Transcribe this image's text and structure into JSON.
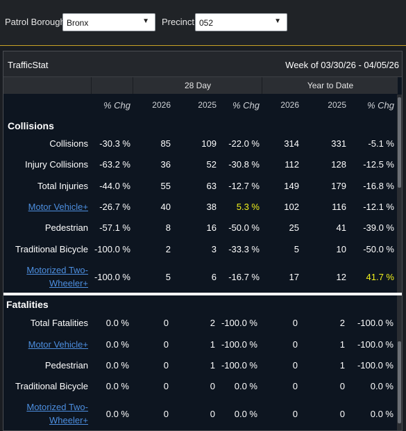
{
  "filters": {
    "borough_label": "Patrol Borough:",
    "borough_value": "Bronx",
    "precinct_label": "Precinct:",
    "precinct_value": "052"
  },
  "panel": {
    "title": "TrafficStat",
    "week": "Week of 03/30/26 - 04/05/26"
  },
  "headers": {
    "group_28": "28 Day",
    "group_ytd": "Year to Date",
    "cols": [
      "% Chg",
      "2026",
      "2025",
      "% Chg",
      "2026",
      "2025",
      "% Chg"
    ]
  },
  "collisions": {
    "section": "Collisions",
    "rows": [
      {
        "label": "Collisions",
        "link": false,
        "wk": "-30.3 %",
        "d26": "85",
        "d25": "109",
        "dchg": "-22.0 %",
        "y26": "314",
        "y25": "331",
        "ychg": "-5.1 %"
      },
      {
        "label": "Injury Collisions",
        "link": false,
        "wk": "-63.2 %",
        "d26": "36",
        "d25": "52",
        "dchg": "-30.8 %",
        "y26": "112",
        "y25": "128",
        "ychg": "-12.5 %"
      },
      {
        "label": "Total Injuries",
        "link": false,
        "wk": "-44.0 %",
        "d26": "55",
        "d25": "63",
        "dchg": "-12.7 %",
        "y26": "149",
        "y25": "179",
        "ychg": "-16.8 %"
      },
      {
        "label": "Motor Vehicle+",
        "link": true,
        "wk": "-26.7 %",
        "d26": "40",
        "d25": "38",
        "dchg": "5.3 %",
        "y26": "102",
        "y25": "116",
        "ychg": "-12.1 %"
      },
      {
        "label": "Pedestrian",
        "link": false,
        "wk": "-57.1 %",
        "d26": "8",
        "d25": "16",
        "dchg": "-50.0 %",
        "y26": "25",
        "y25": "41",
        "ychg": "-39.0 %"
      },
      {
        "label": "Traditional Bicycle",
        "link": false,
        "wk": "-100.0 %",
        "d26": "2",
        "d25": "3",
        "dchg": "-33.3 %",
        "y26": "5",
        "y25": "10",
        "ychg": "-50.0 %"
      },
      {
        "label1": "Motorized Two-",
        "label2": "Wheeler+",
        "link": true,
        "wk": "-100.0 %",
        "d26": "5",
        "d25": "6",
        "dchg": "-16.7 %",
        "y26": "17",
        "y25": "12",
        "ychg": "41.7 %"
      }
    ]
  },
  "fatalities": {
    "section": "Fatalities",
    "rows": [
      {
        "label": "Total Fatalities",
        "link": false,
        "wk": "0.0 %",
        "d26": "0",
        "d25": "2",
        "dchg": "-100.0 %",
        "y26": "0",
        "y25": "2",
        "ychg": "-100.0 %"
      },
      {
        "label": "Motor Vehicle+",
        "link": true,
        "wk": "0.0 %",
        "d26": "0",
        "d25": "1",
        "dchg": "-100.0 %",
        "y26": "0",
        "y25": "1",
        "ychg": "-100.0 %"
      },
      {
        "label": "Pedestrian",
        "link": false,
        "wk": "0.0 %",
        "d26": "0",
        "d25": "1",
        "dchg": "-100.0 %",
        "y26": "0",
        "y25": "1",
        "ychg": "-100.0 %"
      },
      {
        "label": "Traditional Bicycle",
        "link": false,
        "wk": "0.0 %",
        "d26": "0",
        "d25": "0",
        "dchg": "0.0 %",
        "y26": "0",
        "y25": "0",
        "ychg": "0.0 %"
      },
      {
        "label1": "Motorized Two-",
        "label2": "Wheeler+",
        "link": true,
        "wk": "0.0 %",
        "d26": "0",
        "d25": "0",
        "dchg": "0.0 %",
        "y26": "0",
        "y25": "0",
        "ychg": "0.0 %"
      }
    ]
  },
  "colors": {
    "accent_border": "#c9a227",
    "link": "#4d8fe0",
    "highlight": "#f2f21c"
  }
}
